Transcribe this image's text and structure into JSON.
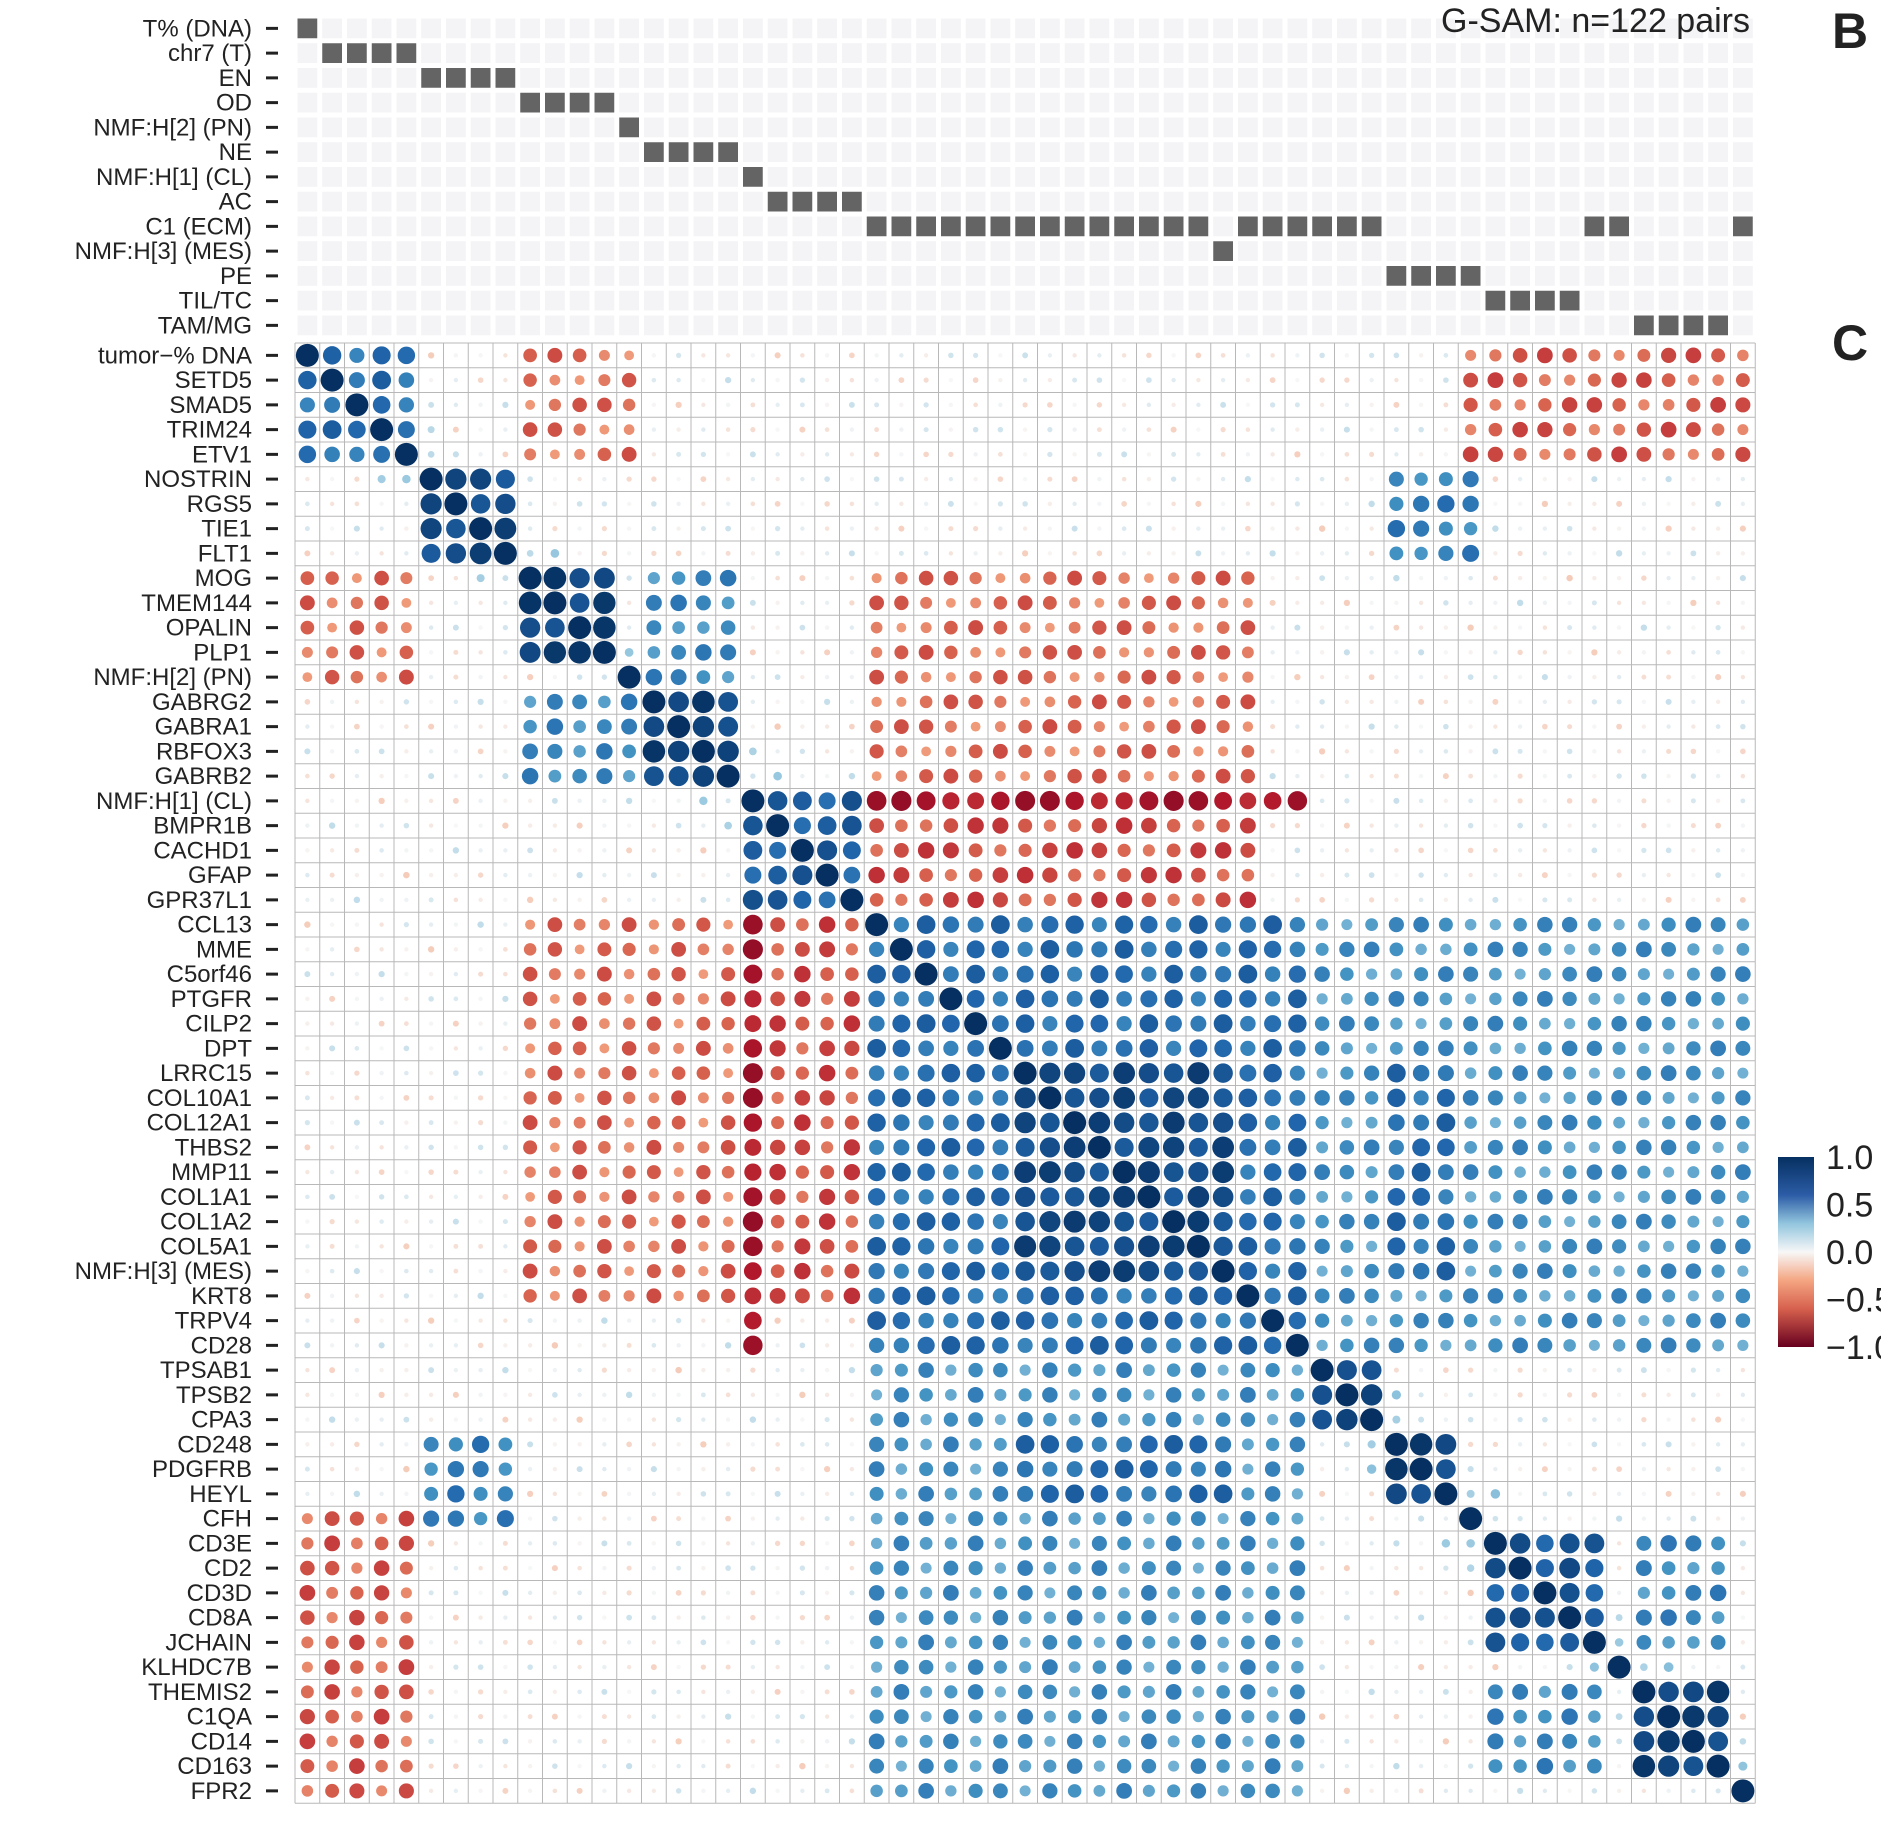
{
  "panel_letters": [
    "B",
    "C"
  ],
  "chart_data": {
    "type": "heatmap",
    "subtype": "correlation-dotplot",
    "title": "G-SAM: n=122 pairs",
    "annotation_rows": [
      "T% (DNA)",
      "chr7 (T)",
      "EN",
      "OD",
      "NMF:H[2] (PN)",
      "NE",
      "NMF:H[1] (CL)",
      "AC",
      "C1 (ECM)",
      "NMF:H[3] (MES)",
      "PE",
      "TIL/TC",
      "TAM/MG"
    ],
    "genes": [
      "tumor−% DNA",
      "SETD5",
      "SMAD5",
      "TRIM24",
      "ETV1",
      "NOSTRIN",
      "RGS5",
      "TIE1",
      "FLT1",
      "MOG",
      "TMEM144",
      "OPALIN",
      "PLP1",
      "NMF:H[2] (PN)",
      "GABRG2",
      "GABRA1",
      "RBFOX3",
      "GABRB2",
      "NMF:H[1] (CL)",
      "BMPR1B",
      "CACHD1",
      "GFAP",
      "GPR37L1",
      "CCL13",
      "MME",
      "C5orf46",
      "PTGFR",
      "CILP2",
      "DPT",
      "LRRC15",
      "COL10A1",
      "COL12A1",
      "THBS2",
      "MMP11",
      "COL1A1",
      "COL1A2",
      "COL5A1",
      "NMF:H[3] (MES)",
      "KRT8",
      "TRPV4",
      "CD28",
      "TPSAB1",
      "TPSB2",
      "CPA3",
      "CD248",
      "PDGFRB",
      "HEYL",
      "CFH",
      "CD3E",
      "CD2",
      "CD3D",
      "CD8A",
      "JCHAIN",
      "KLHDC7B",
      "THEMIS2",
      "C1QA",
      "CD14",
      "CD163",
      "FPR2"
    ],
    "annotation_membership": [
      [
        0
      ],
      [
        1,
        2,
        3,
        4
      ],
      [
        5,
        6,
        7,
        8
      ],
      [
        9,
        10,
        11,
        12
      ],
      [
        13
      ],
      [
        14,
        15,
        16,
        17
      ],
      [
        18
      ],
      [
        19,
        20,
        21,
        22
      ],
      [
        23,
        24,
        25,
        26,
        27,
        28,
        29,
        30,
        31,
        32,
        33,
        34,
        35,
        36,
        38,
        39,
        40,
        41,
        42,
        43,
        52,
        53,
        58
      ],
      [
        37
      ],
      [
        44,
        45,
        46,
        47
      ],
      [
        48,
        49,
        50,
        51
      ],
      [
        54,
        55,
        56,
        57
      ]
    ],
    "gene_blocks": [
      {
        "members": [
          0,
          1,
          2,
          3,
          4
        ],
        "within": 0.55
      },
      {
        "members": [
          5,
          6,
          7,
          8
        ],
        "within": 0.8
      },
      {
        "members": [
          9,
          10,
          11,
          12
        ],
        "within": 0.85
      },
      {
        "members": [
          14,
          15,
          16,
          17
        ],
        "within": 0.85
      },
      {
        "members": [
          18,
          19,
          20,
          21,
          22
        ],
        "within": 0.65
      },
      {
        "members": [
          23,
          24,
          25,
          26,
          27,
          28,
          29,
          30,
          31,
          32,
          33,
          34,
          35,
          36,
          37,
          38,
          39,
          40
        ],
        "within": 0.55
      },
      {
        "members": [
          29,
          30,
          31,
          32,
          33,
          34,
          35,
          36,
          37
        ],
        "within": 0.8
      },
      {
        "members": [
          41,
          42,
          43
        ],
        "within": 0.8
      },
      {
        "members": [
          44,
          45,
          46
        ],
        "within": 0.85
      },
      {
        "members": [
          48,
          49,
          50,
          51,
          52
        ],
        "within": 0.7
      },
      {
        "members": [
          54,
          55,
          56,
          57
        ],
        "within": 0.85
      }
    ],
    "block_pairs": [
      {
        "a": [
          0,
          1,
          2,
          3,
          4
        ],
        "b": [
          9,
          10,
          11,
          12,
          13
        ],
        "r": -0.3
      },
      {
        "a": [
          0,
          1,
          2,
          3,
          4
        ],
        "b": [
          47,
          48,
          49,
          50,
          51,
          52,
          53,
          54,
          55,
          56,
          57,
          58
        ],
        "r": -0.35
      },
      {
        "a": [
          5,
          6,
          7,
          8
        ],
        "b": [
          44,
          45,
          46,
          47
        ],
        "r": 0.45
      },
      {
        "a": [
          9,
          10,
          11,
          12,
          13,
          14,
          15,
          16,
          17
        ],
        "b": [
          23,
          24,
          25,
          26,
          27,
          28,
          29,
          30,
          31,
          32,
          33,
          34,
          35,
          36,
          37,
          38
        ],
        "r": -0.3
      },
      {
        "a": [
          9,
          10,
          11,
          12,
          13
        ],
        "b": [
          14,
          15,
          16,
          17
        ],
        "r": 0.4
      },
      {
        "a": [
          18,
          19,
          20,
          21,
          22
        ],
        "b": [
          23,
          24,
          25,
          26,
          27,
          28,
          29,
          30,
          31,
          32,
          33,
          34,
          35,
          36,
          37,
          38
        ],
        "r": -0.4
      },
      {
        "a": [
          18
        ],
        "b": [
          23,
          24,
          25,
          26,
          27,
          28,
          29,
          30,
          31,
          32,
          33,
          34,
          35,
          36,
          37,
          38,
          39,
          40
        ],
        "r": -0.65
      },
      {
        "a": [
          23,
          24,
          25,
          26,
          27,
          28,
          29,
          30,
          31,
          32,
          33,
          34,
          35,
          36,
          37,
          38,
          39,
          40
        ],
        "b": [
          41,
          42,
          43,
          44,
          45,
          46,
          47,
          48,
          49,
          50,
          51,
          52,
          53,
          54,
          55,
          56,
          57,
          58
        ],
        "r": 0.35
      },
      {
        "a": [
          44,
          45,
          46
        ],
        "b": [
          29,
          30,
          31,
          32,
          33,
          34,
          35,
          36,
          37
        ],
        "r": 0.55
      },
      {
        "a": [
          48,
          49,
          50,
          51,
          52
        ],
        "b": [
          54,
          55,
          56,
          57
        ],
        "r": 0.4
      }
    ],
    "scale": {
      "min": -1,
      "max": 1,
      "ticks": [
        1.0,
        0.5,
        0.0,
        -0.5,
        -1.0
      ],
      "tick_labels": [
        "1.0",
        "0.5",
        "0.0",
        "−0.5",
        "−1.0"
      ]
    },
    "colors": {
      "strong_negative": "#67001f",
      "negative": "#d6604d",
      "neutral": "#f7f7f7",
      "positive": "#4393c3",
      "strong_positive": "#053061",
      "annotation_on": "#646464",
      "annotation_off": "#f4f4f6",
      "grid": "#b8b8b8"
    },
    "legend_position": "right"
  }
}
